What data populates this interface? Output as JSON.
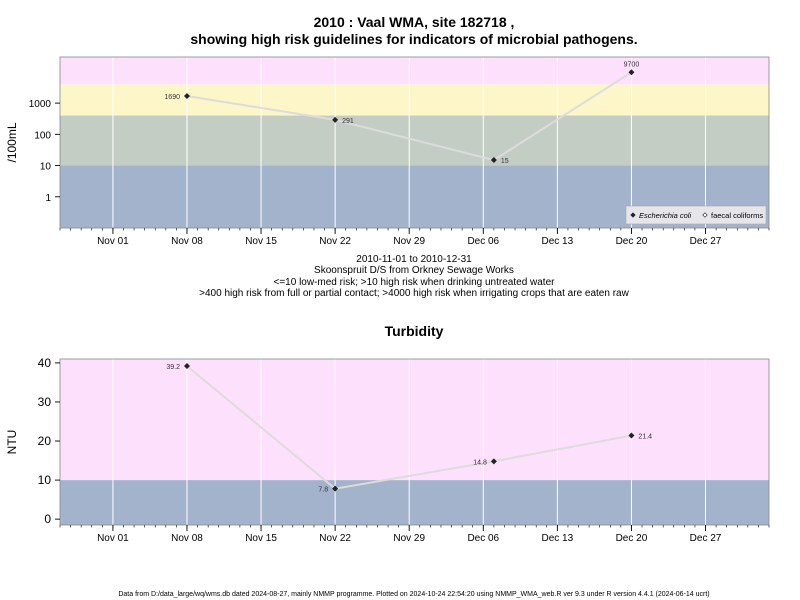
{
  "figure": {
    "title_line1": "2010 : Vaal WMA, site 182718 ,",
    "title_line2": "showing high risk guidelines for indicators of microbial pathogens.",
    "caption_lines": [
      "2010-11-01 to 2010-12-31",
      "Skoonspruit D/S from Orkney Sewage Works",
      "<=10 low-med risk; >10 high risk when drinking untreated water",
      ">400 high risk from full or partial contact; >4000 high risk when irrigating crops that are eaten raw"
    ],
    "footer": "Data from D:/data_large/wq/wms.db dated 2024-08-27, mainly NMMP programme. Plotted on 2024-10-24 22:54:20 using NMMP_WMA_web.R ver 9.3 under R version 4.4.1 (2024-06-14 ucrt)"
  },
  "colors": {
    "band_blue": "#a3b3cc",
    "band_green": "#c4cdc3",
    "band_yellow": "#fdf6c8",
    "band_pink": "#fde0fc",
    "grid": "#ffffff",
    "line": "#dcdcdc",
    "point": "#222222"
  },
  "chart_data": [
    {
      "type": "line",
      "title": "",
      "ylabel": "/100mL",
      "xlabel": "",
      "y_scale": "log",
      "ylim": [
        0.1,
        30000
      ],
      "y_ticks": [
        1,
        10,
        100,
        1000
      ],
      "y_tick_labels": [
        "1",
        "10",
        "100",
        "1000"
      ],
      "x_range": [
        "2010-10-27",
        "2011-01-02"
      ],
      "x_ticks": [
        "2010-11-01",
        "2010-11-08",
        "2010-11-15",
        "2010-11-22",
        "2010-11-29",
        "2010-12-06",
        "2010-12-13",
        "2010-12-20",
        "2010-12-27"
      ],
      "x_tick_labels": [
        "Nov 01",
        "Nov 08",
        "Nov 15",
        "Nov 22",
        "Nov 29",
        "Dec 06",
        "Dec 13",
        "Dec 20",
        "Dec 27"
      ],
      "bands": [
        {
          "from": 0.1,
          "to": 10,
          "color": "band_blue"
        },
        {
          "from": 10,
          "to": 400,
          "color": "band_green"
        },
        {
          "from": 400,
          "to": 4000,
          "color": "band_yellow"
        },
        {
          "from": 4000,
          "to": 30000,
          "color": "band_pink"
        }
      ],
      "series": [
        {
          "name": "Escherichia coli",
          "x": [
            "2010-11-08",
            "2010-11-22",
            "2010-12-07",
            "2010-12-20"
          ],
          "values": [
            1690,
            291,
            15,
            9700
          ],
          "labels": [
            "1690",
            "291",
            "15",
            "9700"
          ],
          "label_pos": [
            "left",
            "right",
            "right",
            "above"
          ]
        }
      ],
      "legend": {
        "placement": "bottom-right",
        "entries": [
          {
            "label": "Escherichia coli",
            "marker": "filled-diamond"
          },
          {
            "label": "faecal coliforms",
            "marker": "open-diamond"
          }
        ]
      }
    },
    {
      "type": "line",
      "title": "Turbidity",
      "ylabel": "NTU",
      "xlabel": "",
      "y_scale": "linear",
      "ylim": [
        -1.5,
        41
      ],
      "y_ticks": [
        0,
        10,
        20,
        30,
        40
      ],
      "y_tick_labels": [
        "0",
        "10",
        "20",
        "30",
        "40"
      ],
      "x_range": [
        "2010-10-27",
        "2011-01-02"
      ],
      "x_ticks": [
        "2010-11-01",
        "2010-11-08",
        "2010-11-15",
        "2010-11-22",
        "2010-11-29",
        "2010-12-06",
        "2010-12-13",
        "2010-12-20",
        "2010-12-27"
      ],
      "x_tick_labels": [
        "Nov 01",
        "Nov 08",
        "Nov 15",
        "Nov 22",
        "Nov 29",
        "Dec 06",
        "Dec 13",
        "Dec 20",
        "Dec 27"
      ],
      "bands": [
        {
          "from": -1.5,
          "to": 10,
          "color": "band_blue"
        },
        {
          "from": 10,
          "to": 41,
          "color": "band_pink"
        }
      ],
      "series": [
        {
          "name": "",
          "x": [
            "2010-11-08",
            "2010-11-22",
            "2010-12-07",
            "2010-12-20"
          ],
          "values": [
            39.2,
            7.8,
            14.8,
            21.4
          ],
          "labels": [
            "39.2",
            "7.8",
            "14.8",
            "21.4"
          ],
          "label_pos": [
            "left",
            "left",
            "left",
            "right"
          ]
        }
      ]
    }
  ]
}
